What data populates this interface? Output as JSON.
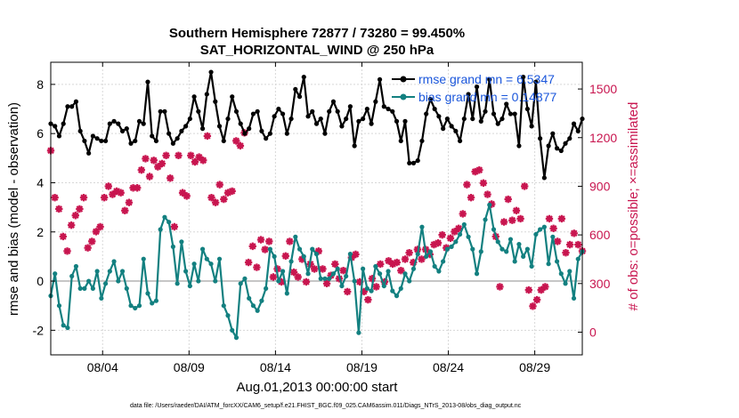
{
  "chart_data": {
    "type": "line",
    "title": "Southern Hemisphere 72877 / 73280 = 99.450%",
    "subtitle": "SAT_HORIZONTAL_WIND @ 250 hPa",
    "xlabel": "Aug.01,2013 00:00:00 start",
    "ylabel": "rmse and bias (model - observation)",
    "ylabel_right": "# of obs: o=possible; ×=assimilated",
    "x_ticks": [
      "08/04",
      "08/09",
      "08/14",
      "08/19",
      "08/24",
      "08/29"
    ],
    "x_tick_days": [
      4,
      9,
      14,
      19,
      24,
      29
    ],
    "xlim_days": [
      1.0,
      31.75
    ],
    "y_ticks": [
      "-2",
      "0",
      "2",
      "4",
      "6",
      "8"
    ],
    "ylim": [
      -3.0,
      8.9
    ],
    "y2_ticks": [
      "0",
      "300",
      "600",
      "900",
      "1200",
      "1500"
    ],
    "y2lim": [
      -140,
      1665
    ],
    "grid": true,
    "legend_position": "top-right",
    "footnote": "data file: /Users/raeder/DAI/ATM_forcXX/CAM6_setup/f.e21.FHIST_BGC.f09_025.CAM6assim.011/Diags_NTrS_2013-08/obs_diag_output.nc",
    "colors": {
      "rmse": "#000000",
      "bias": "#138080",
      "obs": "#c8154f",
      "zero_line": "#b4b4b4",
      "legend_text": "#1a56db"
    },
    "series": [
      {
        "name": "rmse",
        "legend": "rmse grand mn = 6.5347",
        "values": [
          6.4,
          6.3,
          5.9,
          6.4,
          7.1,
          7.1,
          7.3,
          6.1,
          5.7,
          5.2,
          5.9,
          5.8,
          5.7,
          5.7,
          6.4,
          6.5,
          6.4,
          6.1,
          6.2,
          5.6,
          5.7,
          6.5,
          6.4,
          8.1,
          5.9,
          5.7,
          6.9,
          6.9,
          6.0,
          5.6,
          5.8,
          6.1,
          6.3,
          6.6,
          7.5,
          6.9,
          6.2,
          7.6,
          8.5,
          7.3,
          6.3,
          5.7,
          6.6,
          7.5,
          6.9,
          6.4,
          6.0,
          6.2,
          6.8,
          6.9,
          6.1,
          5.8,
          6.0,
          6.7,
          7.0,
          6.8,
          6.0,
          6.6,
          7.8,
          7.5,
          8.3,
          6.7,
          6.9,
          6.4,
          6.6,
          6.0,
          6.9,
          7.3,
          6.9,
          6.3,
          6.6,
          7.1,
          5.5,
          6.5,
          6.6,
          7.0,
          6.4,
          7.3,
          8.2,
          7.1,
          7.0,
          6.9,
          6.5,
          5.7,
          6.5,
          4.8,
          4.8,
          4.9,
          5.7,
          6.8,
          7.4,
          7.0,
          6.7,
          6.2,
          6.6,
          6.3,
          6.1,
          5.7,
          6.6,
          7.6,
          6.6,
          7.9,
          6.5,
          6.9,
          8.2,
          6.8,
          6.4,
          6.6,
          7.2,
          6.8,
          6.8,
          5.5,
          8.3,
          7.0,
          6.3,
          8.1,
          5.8,
          4.2,
          5.5,
          6.0,
          5.4,
          5.3,
          5.6,
          5.8,
          6.4,
          6.1,
          6.6
        ]
      },
      {
        "name": "bias",
        "legend": "bias grand mn = 0.14877",
        "values": [
          -0.6,
          0.3,
          -1.0,
          -1.8,
          -1.9,
          0.2,
          0.6,
          -0.3,
          -0.3,
          0.0,
          -0.3,
          0.4,
          -0.7,
          -0.1,
          0.4,
          0.8,
          0.0,
          0.4,
          -0.3,
          -1.0,
          -1.1,
          -1.0,
          0.9,
          -0.5,
          -0.9,
          -0.8,
          2.1,
          2.6,
          2.4,
          1.4,
          -0.1,
          1.6,
          0.4,
          -0.2,
          0.7,
          0.0,
          1.3,
          0.9,
          0.7,
          0.0,
          0.9,
          -1.0,
          -1.4,
          -2.0,
          -2.3,
          -0.1,
          0.1,
          -0.7,
          -1.0,
          -1.2,
          -0.8,
          -0.3,
          1.3,
          1.0,
          0.0,
          0.4,
          -0.5,
          0.8,
          1.8,
          1.3,
          1.0,
          0.3,
          1.3,
          1.1,
          0.1,
          0.1,
          0.1,
          0.3,
          0.5,
          -0.2,
          0.2,
          1.1,
          0.0,
          -2.1,
          0.5,
          -0.3,
          -0.4,
          0.6,
          0.3,
          -0.2,
          0.4,
          -0.4,
          -0.6,
          -0.3,
          0.3,
          0.0,
          0.5,
          1.1,
          2.2,
          1.0,
          1.2,
          0.6,
          0.4,
          0.8,
          1.3,
          1.4,
          1.6,
          1.9,
          2.3,
          1.8,
          1.3,
          0.3,
          1.2,
          2.5,
          3.1,
          2.1,
          1.6,
          1.3,
          1.2,
          1.7,
          0.8,
          1.5,
          1.0,
          1.3,
          0.6,
          1.9,
          2.1,
          2.2,
          0.7,
          1.8,
          0.8,
          0.3,
          -0.1,
          0.4,
          -0.7,
          0.9,
          1.2
        ]
      },
      {
        "name": "obs assimilated",
        "values": [
          1120,
          830,
          760,
          590,
          500,
          660,
          720,
          760,
          830,
          520,
          560,
          620,
          650,
          830,
          900,
          850,
          870,
          860,
          750,
          800,
          890,
          890,
          1000,
          1070,
          960,
          1060,
          1020,
          1040,
          1090,
          950,
          650,
          1090,
          860,
          840,
          1090,
          1050,
          1080,
          1060,
          1210,
          830,
          800,
          910,
          820,
          860,
          870,
          1180,
          1150,
          1230,
          430,
          530,
          400,
          570,
          510,
          560,
          340,
          390,
          310,
          470,
          560,
          370,
          340,
          450,
          310,
          420,
          390,
          500,
          390,
          300,
          350,
          420,
          330,
          380,
          250,
          460,
          480,
          310,
          250,
          200,
          330,
          280,
          420,
          310,
          440,
          420,
          430,
          380,
          450,
          490,
          430,
          510,
          450,
          510,
          480,
          540,
          550,
          600,
          520,
          580,
          620,
          640,
          730,
          910,
          830,
          990,
          1000,
          920,
          850,
          790,
          590,
          280,
          680,
          820,
          690,
          750,
          700,
          900,
          260,
          160,
          200,
          260,
          280,
          700,
          640,
          560,
          700,
          490,
          540,
          610,
          540,
          500
        ]
      }
    ]
  }
}
